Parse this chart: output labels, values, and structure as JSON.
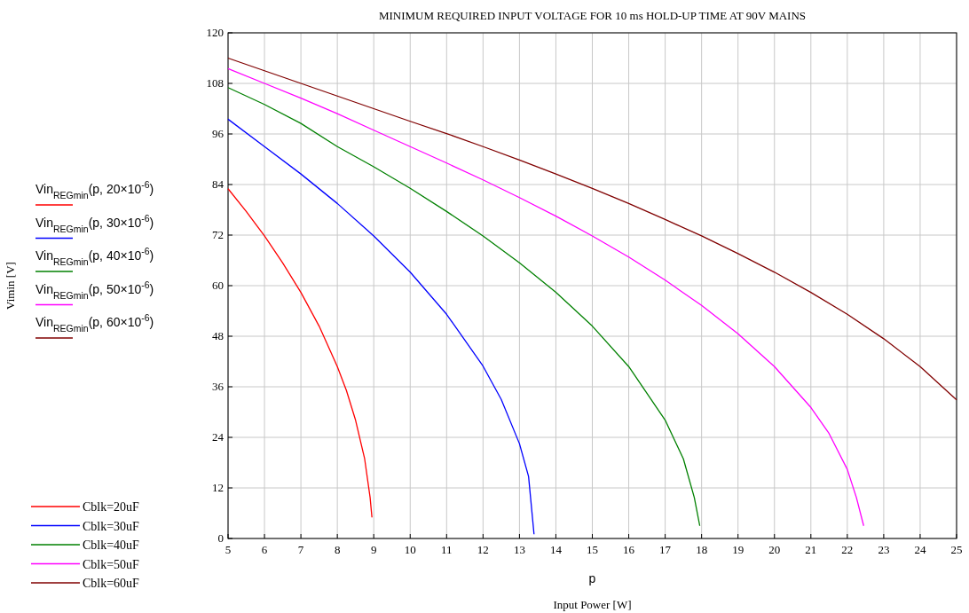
{
  "chart_data": {
    "type": "line",
    "title": "MINIMUM REQUIRED INPUT VOLTAGE FOR 10 ms HOLD-UP TIME AT 90V MAINS",
    "xlabel": "Input Power [W]",
    "annotations": [
      "p",
      "Vimin [V]",
      "Vin$_{REGmin}$(p, 20×10$^{-6}$)",
      "Vin$_{REGmin}$(p, 30×10$^{-6}$)",
      "Vin$_{REGmin}$(p, 40×10$^{-6}$)",
      "Vin$_{REGmin}$(p, 50×10$^{-6}$)",
      "Vin$_{REGmin}$(p, 60×10$^{-6}$)"
    ],
    "xlim": [
      5,
      25
    ],
    "xticks": [
      5,
      6,
      7,
      8,
      9,
      10,
      11,
      12,
      13,
      14,
      15,
      16,
      17,
      18,
      19,
      20,
      21,
      22,
      23,
      24,
      25
    ],
    "ylim": [
      0,
      120
    ],
    "yticks": [
      0,
      12,
      24,
      36,
      48,
      60,
      72,
      84,
      96,
      108,
      120
    ],
    "grid": true,
    "legend": "bottom left",
    "line_style": "solid",
    "marker": "none",
    "series": [
      {
        "name": "Cblk=20uF",
        "color": "#ff0000",
        "x": [
          5,
          5.5,
          6,
          6.5,
          7,
          7.5,
          8,
          8.25,
          8.5,
          8.75,
          8.9,
          8.95
        ],
        "values": [
          83,
          77.6,
          71.8,
          65.4,
          58.4,
          50.4,
          40.8,
          35.1,
          28.1,
          18.9,
          9.7,
          5
        ]
      },
      {
        "name": "Cblk=30uF",
        "color": "#0000ff",
        "x": [
          5,
          6,
          7,
          8,
          9,
          10,
          11,
          12,
          12.5,
          13,
          13.25,
          13.4
        ],
        "values": [
          99.5,
          93,
          86.5,
          79.5,
          71.8,
          63.2,
          53.2,
          40.9,
          33,
          22.5,
          14.7,
          1
        ]
      },
      {
        "name": "Cblk=40uF",
        "color": "#008000",
        "x": [
          5,
          6,
          7,
          8,
          9,
          10,
          11,
          12,
          13,
          14,
          15,
          16,
          17,
          17.5,
          17.8,
          17.95
        ],
        "values": [
          107,
          103,
          98.5,
          93,
          88.2,
          83.1,
          77.6,
          71.8,
          65.4,
          58.4,
          50.4,
          40.8,
          28.1,
          18.9,
          9.7,
          3
        ]
      },
      {
        "name": "Cblk=50uF",
        "color": "#ff00ff",
        "x": [
          5,
          6,
          7,
          8,
          9,
          10,
          11,
          12,
          13,
          14,
          15,
          16,
          17,
          18,
          19,
          20,
          21,
          21.5,
          22,
          22.25,
          22.45
        ],
        "values": [
          111.5,
          108,
          104.5,
          100.8,
          96.9,
          93,
          89.1,
          85.1,
          80.9,
          76.5,
          71.8,
          66.8,
          61.3,
          55.3,
          48.6,
          40.8,
          31.1,
          24.9,
          16.4,
          9.7,
          3
        ]
      },
      {
        "name": "Cblk=60uF",
        "color": "#800000",
        "x": [
          5,
          6,
          7,
          8,
          9,
          10,
          11,
          12,
          13,
          14,
          15,
          16,
          17,
          18,
          19,
          20,
          21,
          22,
          23,
          24,
          25
        ],
        "values": [
          114,
          111,
          108,
          105,
          102,
          99,
          96.1,
          93,
          89.8,
          86.5,
          83.1,
          79.5,
          75.7,
          71.8,
          67.6,
          63.2,
          58.4,
          53.2,
          47.4,
          40.8,
          32.9
        ]
      }
    ]
  }
}
